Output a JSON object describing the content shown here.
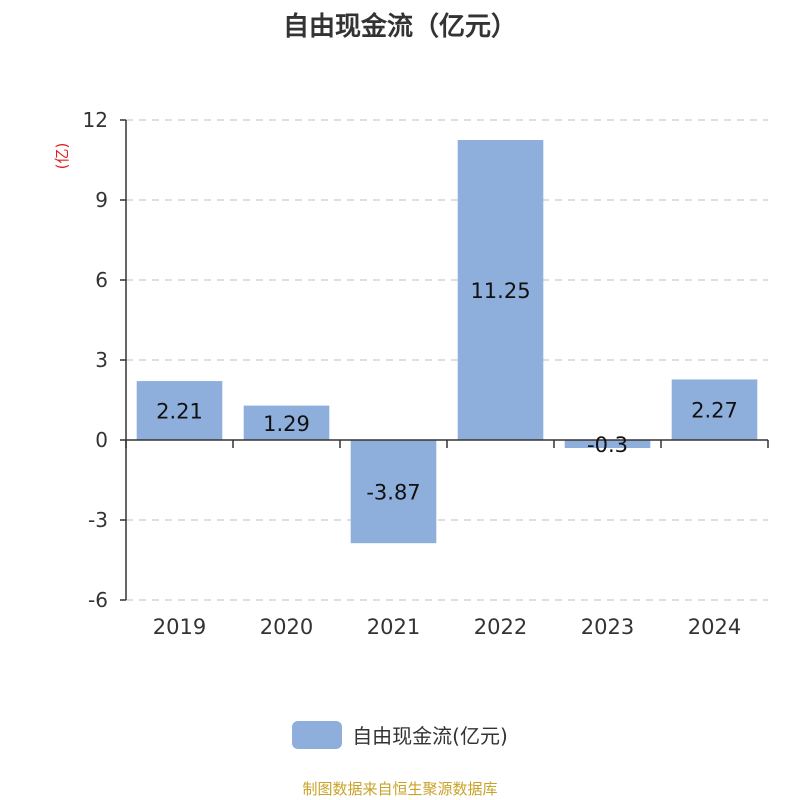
{
  "chart_data": {
    "type": "bar",
    "title": "自由现金流（亿元）",
    "ylabel": "(亿)",
    "categories": [
      "2019",
      "2020",
      "2021",
      "2022",
      "2023",
      "2024"
    ],
    "series": [
      {
        "name": "自由现金流(亿元)",
        "values": [
          2.21,
          1.29,
          -3.87,
          11.25,
          -0.3,
          2.27
        ]
      }
    ],
    "data_labels": [
      "2.21",
      "1.29",
      "-3.87",
      "11.25",
      "-0.3",
      "2.27"
    ],
    "ylim": [
      -6,
      12
    ],
    "yticks": [
      12,
      9,
      6,
      3,
      0,
      -3,
      -6
    ],
    "grid": true,
    "legend_position": "bottom"
  },
  "colors": {
    "bar": "#8eaedb",
    "axis": "#333333",
    "grid": "#cccccc",
    "ylabel": "#e02020",
    "source": "#c9a227"
  },
  "source_note": "制图数据来自恒生聚源数据库"
}
